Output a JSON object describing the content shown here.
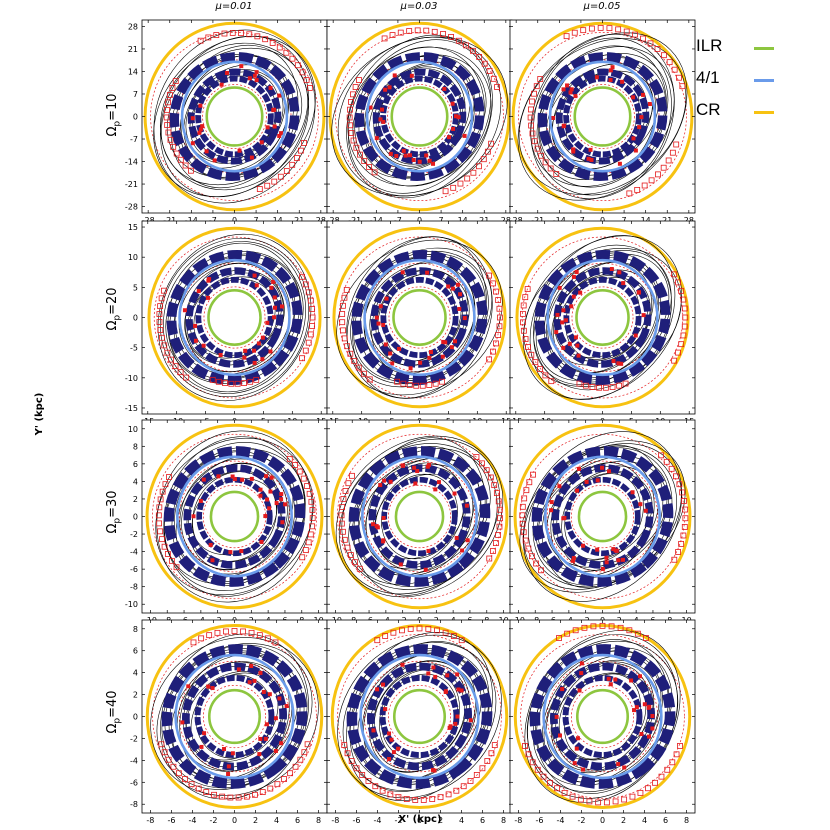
{
  "legend": [
    {
      "label": "ILR",
      "color": "#8dc63f"
    },
    {
      "label": "4/1",
      "color": "#6a9bea"
    },
    {
      "label": "CR",
      "color": "#f7c211"
    }
  ],
  "colors": {
    "contour": "#000000",
    "square": "#e41a1c",
    "dashed": "#e41a1c",
    "blob": "#1f1f7a",
    "ilr": "#8dc63f",
    "fourone": "#6a9bea",
    "cr": "#f7c211"
  },
  "chart_data": {
    "type": "scatter",
    "xlabel": "X' (kpc)",
    "ylabel": "Y' (kpc)",
    "column_titles": [
      "μ=0.01",
      "μ=0.03",
      "μ=0.05"
    ],
    "mu": [
      0.01,
      0.03,
      0.05
    ],
    "rows": [
      {
        "omega_p": 10,
        "label": "Ω_p=10",
        "label_main": "Ω",
        "label_sub": "p",
        "label_rest": "=10",
        "range": [
          -30,
          30
        ],
        "ticks": [
          -28,
          -21,
          -14,
          -7,
          0,
          7,
          14,
          21,
          28
        ],
        "tick_labels": [
          "-28",
          "-21",
          "-14",
          "-7",
          "0",
          "7",
          "14",
          "21",
          "28"
        ],
        "resonances_kpc": {
          "ilr": 9,
          "fourone": 17,
          "cr": 29
        },
        "squares": [
          {
            "start": 20,
            "end": 115,
            "r": 26
          },
          {
            "start": 150,
            "end": 230,
            "r": 22
          },
          {
            "start": 290,
            "end": 340,
            "r": 24
          }
        ]
      },
      {
        "omega_p": 20,
        "label": "Ω_p=20",
        "label_main": "Ω",
        "label_sub": "p",
        "label_rest": "=20",
        "range": [
          -16,
          16
        ],
        "ticks": [
          -15,
          -10,
          -5,
          0,
          5,
          10,
          15
        ],
        "tick_labels": [
          "-15",
          "-10",
          "-5",
          "0",
          "5",
          "10",
          "15"
        ],
        "resonances_kpc": {
          "ilr": 4.5,
          "fourone": 9.5,
          "cr": 14.8
        },
        "squares": [
          {
            "start": 160,
            "end": 230,
            "r": 13
          },
          {
            "start": 330,
            "end": 30,
            "r": 13.5
          },
          {
            "start": 250,
            "end": 290,
            "r": 11
          }
        ]
      },
      {
        "omega_p": 30,
        "label": "Ω_p=30",
        "label_main": "Ω",
        "label_sub": "p",
        "label_rest": "=30",
        "range": [
          -11,
          11
        ],
        "ticks": [
          -10,
          -8,
          -6,
          -4,
          -2,
          0,
          2,
          4,
          6,
          8,
          10
        ],
        "tick_labels": [
          "-10",
          "-8",
          "-6",
          "-4",
          "-2",
          "0",
          "2",
          "4",
          "6",
          "8",
          "10"
        ],
        "resonances_kpc": {
          "ilr": 2.8,
          "fourone": 6.8,
          "cr": 10.4
        },
        "squares": [
          {
            "start": 150,
            "end": 220,
            "r": 9
          },
          {
            "start": 330,
            "end": 45,
            "r": 9.3
          }
        ]
      },
      {
        "omega_p": 40,
        "label": "Ω_p=40",
        "label_main": "Ω",
        "label_sub": "p",
        "label_rest": "=40",
        "range": [
          -8.8,
          8.8
        ],
        "ticks": [
          -8,
          -6,
          -4,
          -2,
          0,
          2,
          4,
          6,
          8
        ],
        "tick_labels": [
          "-8",
          "-6",
          "-4",
          "-2",
          "0",
          "2",
          "4",
          "6",
          "8"
        ],
        "resonances_kpc": {
          "ilr": 2.4,
          "fourone": 5.6,
          "cr": 8.3
        },
        "squares": [
          {
            "start": 200,
            "end": 340,
            "r": 7.4
          },
          {
            "start": 60,
            "end": 120,
            "r": 7.8
          }
        ]
      }
    ]
  }
}
